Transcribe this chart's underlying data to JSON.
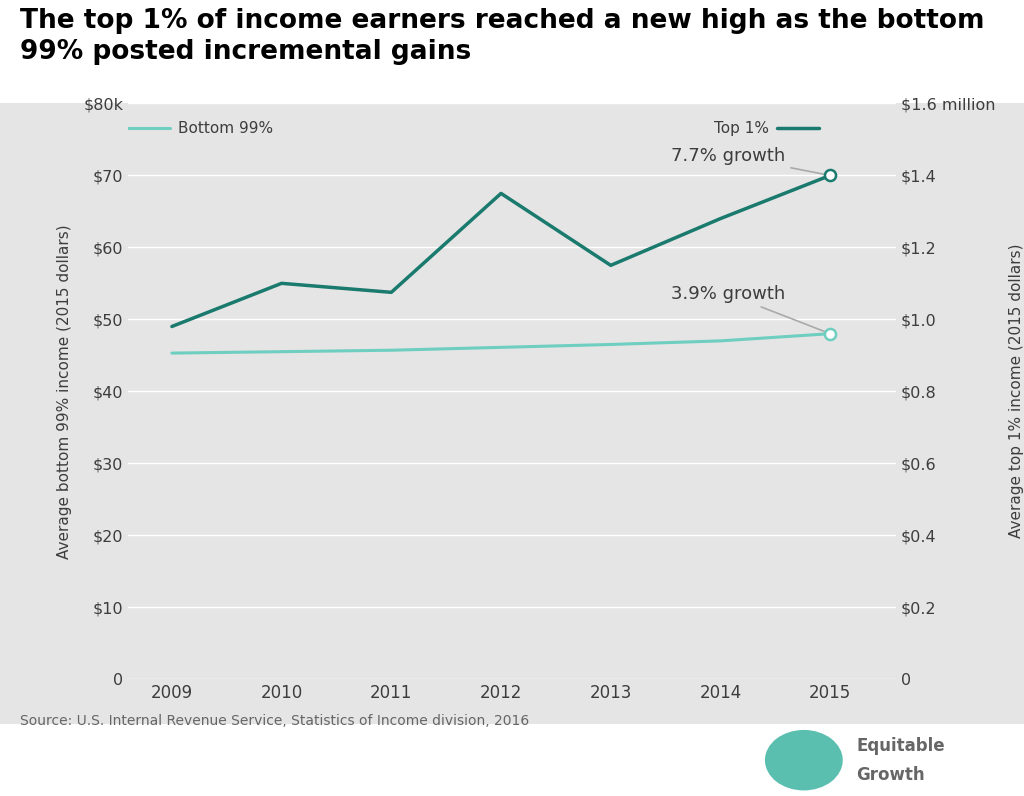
{
  "title_line1": "The top 1% of income earners reached a new high as the bottom",
  "title_line2": "99% posted incremental gains",
  "years": [
    2009,
    2010,
    2011,
    2012,
    2013,
    2014,
    2015
  ],
  "bottom99": [
    45.3,
    45.5,
    45.7,
    46.1,
    46.5,
    47.0,
    48.0
  ],
  "top1": [
    0.98,
    1.1,
    1.075,
    1.35,
    1.15,
    1.28,
    1.4
  ],
  "bottom99_color": "#6ecec0",
  "top1_color": "#1a7a6e",
  "bg_color": "#e5e5e5",
  "white_bg": "#ffffff",
  "left_ylabel": "Average bottom 99% income (2015 dollars)",
  "right_ylabel": "Average top 1% income (2015 dollars)",
  "left_yticks": [
    0,
    10,
    20,
    30,
    40,
    50,
    60,
    70,
    80
  ],
  "left_ytick_labels": [
    "0",
    "$10",
    "$20",
    "$30",
    "$40",
    "$50",
    "$60",
    "$70",
    "$80k"
  ],
  "right_yticks": [
    0,
    0.2,
    0.4,
    0.6,
    0.8,
    1.0,
    1.2,
    1.4,
    1.6
  ],
  "right_ytick_labels": [
    "0",
    "$0.2",
    "$0.4",
    "$0.6",
    "$0.8",
    "$1.0",
    "$1.2",
    "$1.4",
    "$1.6 million"
  ],
  "left_ylim": [
    0,
    80
  ],
  "right_ylim": [
    0,
    1.6
  ],
  "xlim": [
    2008.6,
    2015.6
  ],
  "source_text": "Source: U.S. Internal Revenue Service, Statistics of Income division, 2016",
  "annotation_top1": "7.7% growth",
  "annotation_bottom99": "3.9% growth",
  "legend_bottom99": "Bottom 99%",
  "legend_top1": "Top 1%",
  "font_color": "#3d3d3d",
  "title_fontsize": 19,
  "label_fontsize": 11,
  "tick_fontsize": 11.5,
  "source_fontsize": 10,
  "annotation_fontsize": 13,
  "logo_circle_color": "#5bbfaf",
  "logo_text_color": "#666666"
}
